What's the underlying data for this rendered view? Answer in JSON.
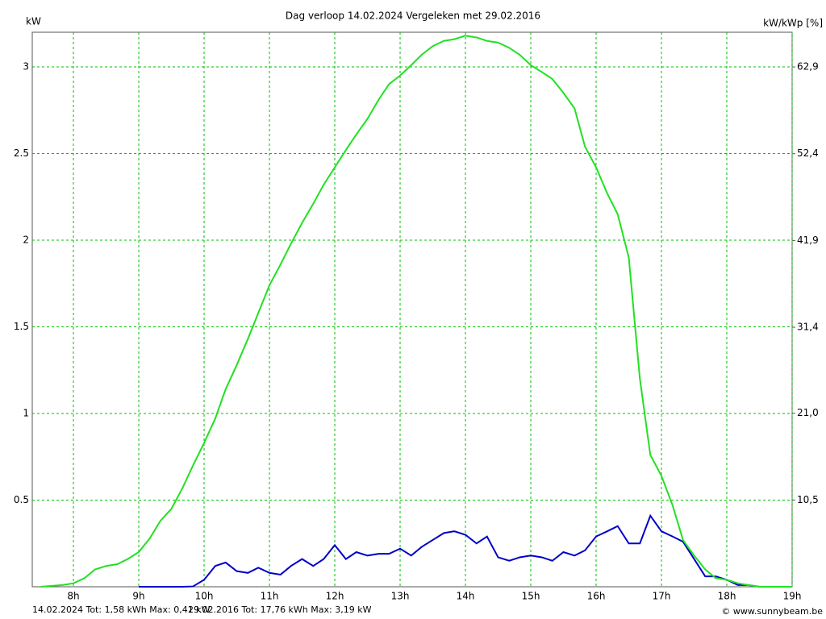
{
  "chart_data": {
    "type": "line",
    "title": "Dag  verloop 14.02.2024   Vergeleken met 29.02.2016",
    "y_label": "kW",
    "y2_label": "kW/kWp [%]",
    "copyright": "© www.sunnybeam.be",
    "x": [
      7.5,
      7.67,
      7.83,
      8,
      8.17,
      8.33,
      8.5,
      8.67,
      8.83,
      9,
      9.17,
      9.33,
      9.5,
      9.67,
      9.83,
      10,
      10.17,
      10.33,
      10.5,
      10.67,
      10.83,
      11,
      11.17,
      11.33,
      11.5,
      11.67,
      11.83,
      12,
      12.17,
      12.33,
      12.5,
      12.67,
      12.83,
      13,
      13.17,
      13.33,
      13.5,
      13.67,
      13.83,
      14,
      14.17,
      14.33,
      14.5,
      14.67,
      14.83,
      15,
      15.17,
      15.33,
      15.5,
      15.67,
      15.83,
      16,
      16.17,
      16.33,
      16.5,
      16.67,
      16.83,
      17,
      17.17,
      17.33,
      17.5,
      17.67,
      17.83,
      18,
      18.17,
      18.33,
      18.5,
      18.67,
      18.83,
      19
    ],
    "series": [
      {
        "name": "14.02.2024 Tot: 1,58 kWh Max: 0,41 kW",
        "color": "#0000c8",
        "values": [
          null,
          null,
          null,
          null,
          null,
          null,
          null,
          null,
          null,
          0,
          0,
          0,
          0,
          0,
          0.002,
          0.04,
          0.12,
          0.14,
          0.09,
          0.08,
          0.11,
          0.08,
          0.07,
          0.12,
          0.16,
          0.12,
          0.16,
          0.24,
          0.16,
          0.2,
          0.18,
          0.19,
          0.19,
          0.22,
          0.18,
          0.23,
          0.27,
          0.31,
          0.32,
          0.3,
          0.25,
          0.29,
          0.17,
          0.15,
          0.17,
          0.18,
          0.17,
          0.15,
          0.2,
          0.18,
          0.21,
          0.29,
          0.32,
          0.35,
          0.25,
          0.25,
          0.41,
          0.32,
          0.29,
          0.26,
          0.16,
          0.06,
          0.06,
          0.04,
          0.01,
          0.01,
          0,
          0,
          0,
          0
        ]
      },
      {
        "name": "29.02.2016 Tot: 17,76 kWh Max: 3,19 kW",
        "color": "#22e022",
        "values": [
          0,
          0.005,
          0.01,
          0.02,
          0.05,
          0.1,
          0.12,
          0.13,
          0.16,
          0.2,
          0.28,
          0.38,
          0.45,
          0.57,
          0.7,
          0.83,
          0.97,
          1.14,
          1.28,
          1.43,
          1.58,
          1.74,
          1.86,
          1.98,
          2.1,
          2.21,
          2.32,
          2.42,
          2.52,
          2.61,
          2.7,
          2.81,
          2.9,
          2.95,
          3.01,
          3.07,
          3.12,
          3.15,
          3.16,
          3.18,
          3.17,
          3.15,
          3.14,
          3.11,
          3.07,
          3.01,
          2.97,
          2.93,
          2.85,
          2.76,
          2.54,
          2.42,
          2.27,
          2.15,
          1.9,
          1.2,
          0.76,
          0.64,
          0.47,
          0.27,
          0.18,
          0.1,
          0.05,
          0.04,
          0.02,
          0.01,
          0,
          0,
          0,
          0
        ]
      }
    ],
    "xlim": [
      7.37,
      19
    ],
    "xticks": [
      {
        "value": 8,
        "label": "8h"
      },
      {
        "value": 9,
        "label": "9h"
      },
      {
        "value": 10,
        "label": "10h"
      },
      {
        "value": 11,
        "label": "11h"
      },
      {
        "value": 12,
        "label": "12h"
      },
      {
        "value": 13,
        "label": "13h"
      },
      {
        "value": 14,
        "label": "14h"
      },
      {
        "value": 15,
        "label": "15h"
      },
      {
        "value": 16,
        "label": "16h"
      },
      {
        "value": 17,
        "label": "17h"
      },
      {
        "value": 18,
        "label": "18h"
      },
      {
        "value": 19,
        "label": "19h"
      }
    ],
    "ylim": [
      0,
      3.2
    ],
    "yticks": [
      0.5,
      1,
      1.5,
      2,
      2.5,
      3
    ],
    "y2lim": [
      0,
      67.1
    ],
    "y2ticks": [
      {
        "value": 10.5,
        "label": "10,5"
      },
      {
        "value": 21,
        "label": "21,0"
      },
      {
        "value": 31.4,
        "label": "31,4"
      },
      {
        "value": 41.9,
        "label": "41,9"
      },
      {
        "value": 52.4,
        "label": "52,4"
      },
      {
        "value": 62.9,
        "label": "62,9"
      }
    ],
    "grid": true,
    "grid_color": "#00c000"
  }
}
